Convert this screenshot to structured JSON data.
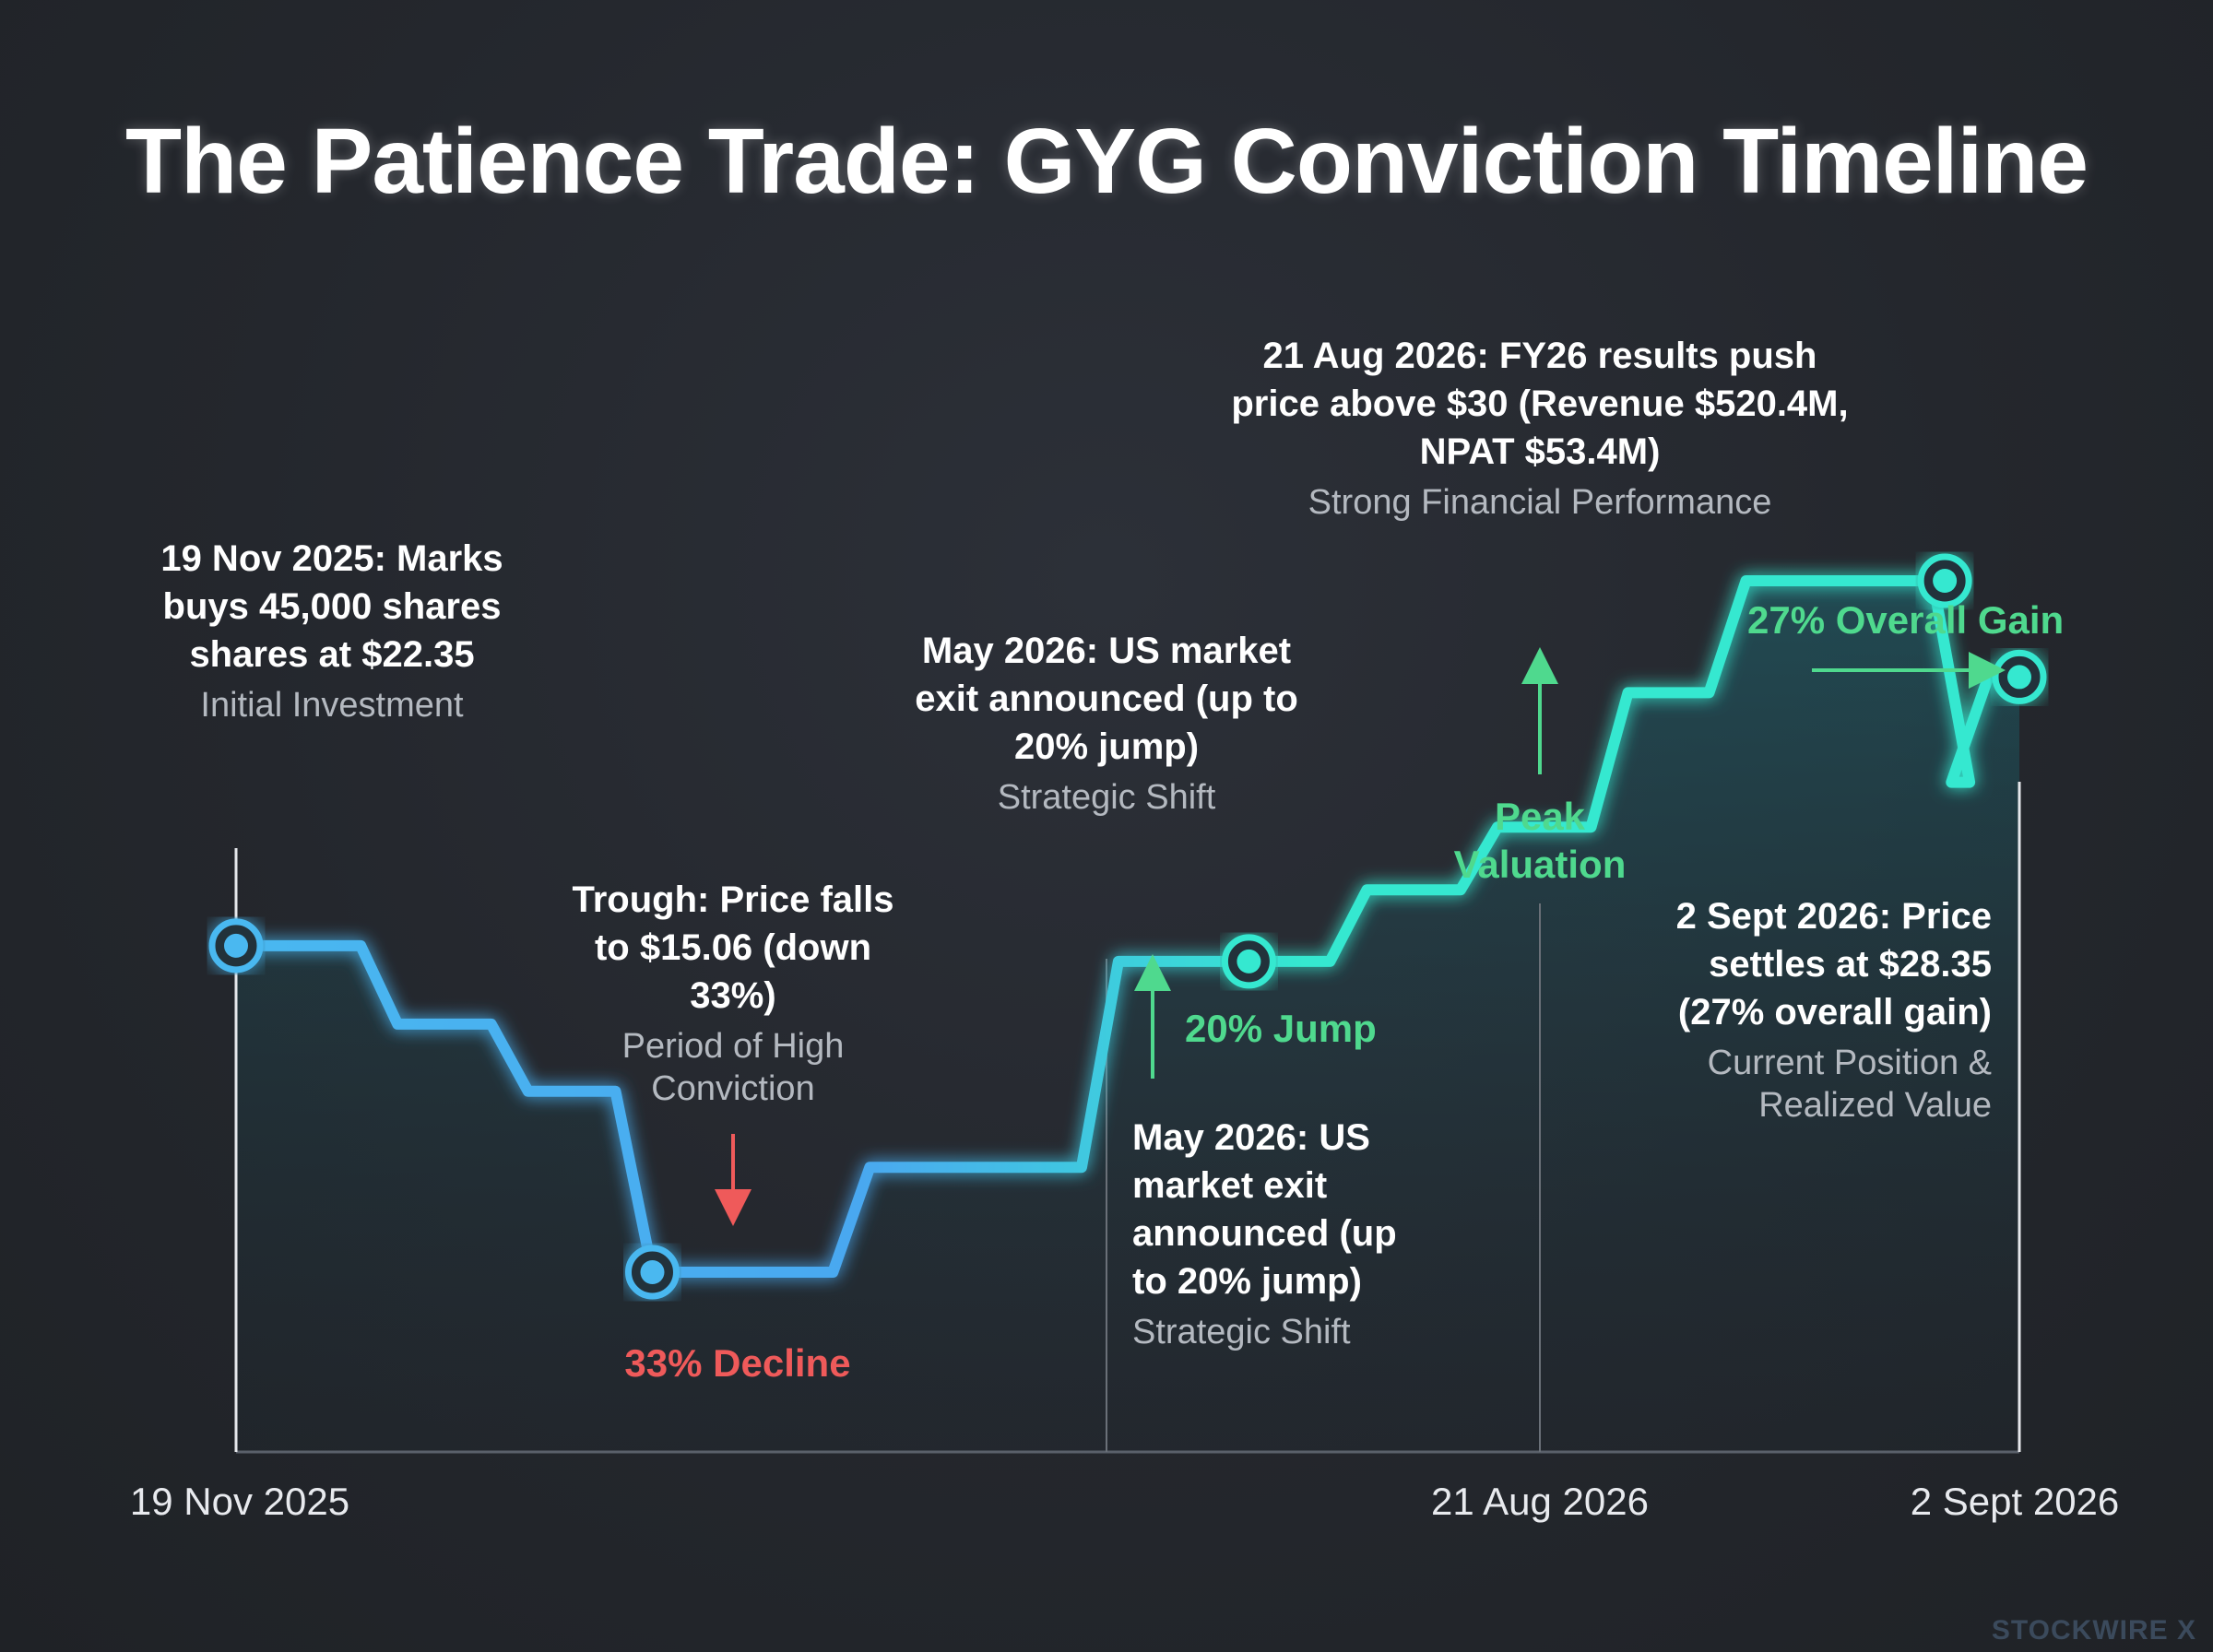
{
  "title": "The Patience Trade: GYG Conviction Timeline",
  "annotations": {
    "start": {
      "head": "19 Nov 2025: Marks buys 45,000 shares shares at $22.35",
      "sub": "Initial Investment"
    },
    "trough": {
      "head": "Trough: Price falls to $15.06 (down 33%)",
      "sub": "Period of High Conviction"
    },
    "may_top": {
      "head": "May 2026: US market exit announced (up to 20% jump)",
      "sub": "Strategic Shift"
    },
    "may_bottom": {
      "head": "May 2026: US market exit announced (up to 20% jump)",
      "sub": "Strategic Shift"
    },
    "peak": {
      "head": "21 Aug 2026: FY26 results push price above $30 (Revenue $520.4M, NPAT $53.4M)",
      "sub": "Strong Financial Performance"
    },
    "end": {
      "head": "2 Sept 2026: Price settles at $28.35 (27% overall gain)",
      "sub": "Current Position & Realized Value"
    }
  },
  "callouts": {
    "decline": "33% Decline",
    "jump": "20% Jump",
    "peak": "Peak Valuation",
    "overall_gain": "27% Overall Gain"
  },
  "x_labels": {
    "start": "19 Nov 2025",
    "peak": "21 Aug 2026",
    "end": "2 Sept 2026"
  },
  "watermark": "STOCKWIRE X",
  "colors": {
    "line_start": "#4ab8f0",
    "line_end": "#35e8d0",
    "green": "#4fd98e",
    "red": "#ef5a5a",
    "background": "#24272d"
  },
  "chart_data": {
    "type": "line",
    "title": "The Patience Trade: GYG Conviction Timeline",
    "xlabel": "",
    "ylabel": "",
    "x": [
      "2025-11-19",
      "2025-12-15",
      "2026-01-05",
      "2026-01-25",
      "2026-02-15",
      "2026-03-01",
      "2026-03-20",
      "2026-04-10",
      "2026-05-01",
      "2026-05-20",
      "2026-06-10",
      "2026-07-01",
      "2026-07-20",
      "2026-08-21",
      "2026-08-25",
      "2026-08-28",
      "2026-09-02"
    ],
    "values": [
      22.35,
      20.6,
      19.1,
      15.06,
      15.06,
      17.4,
      17.4,
      22.0,
      22.0,
      23.6,
      25.0,
      28.0,
      30.5,
      30.5,
      26.0,
      28.35,
      28.35
    ],
    "markers": [
      {
        "x": "2025-11-19",
        "y": 22.35
      },
      {
        "x": "2026-01-25",
        "y": 15.06
      },
      {
        "x": "2026-05-01",
        "y": 22.0
      },
      {
        "x": "2026-08-21",
        "y": 30.5
      },
      {
        "x": "2026-09-02",
        "y": 28.35
      }
    ],
    "x_tick_labels": [
      "19 Nov 2025",
      "21 Aug 2026",
      "2 Sept 2026"
    ],
    "grid": false
  }
}
